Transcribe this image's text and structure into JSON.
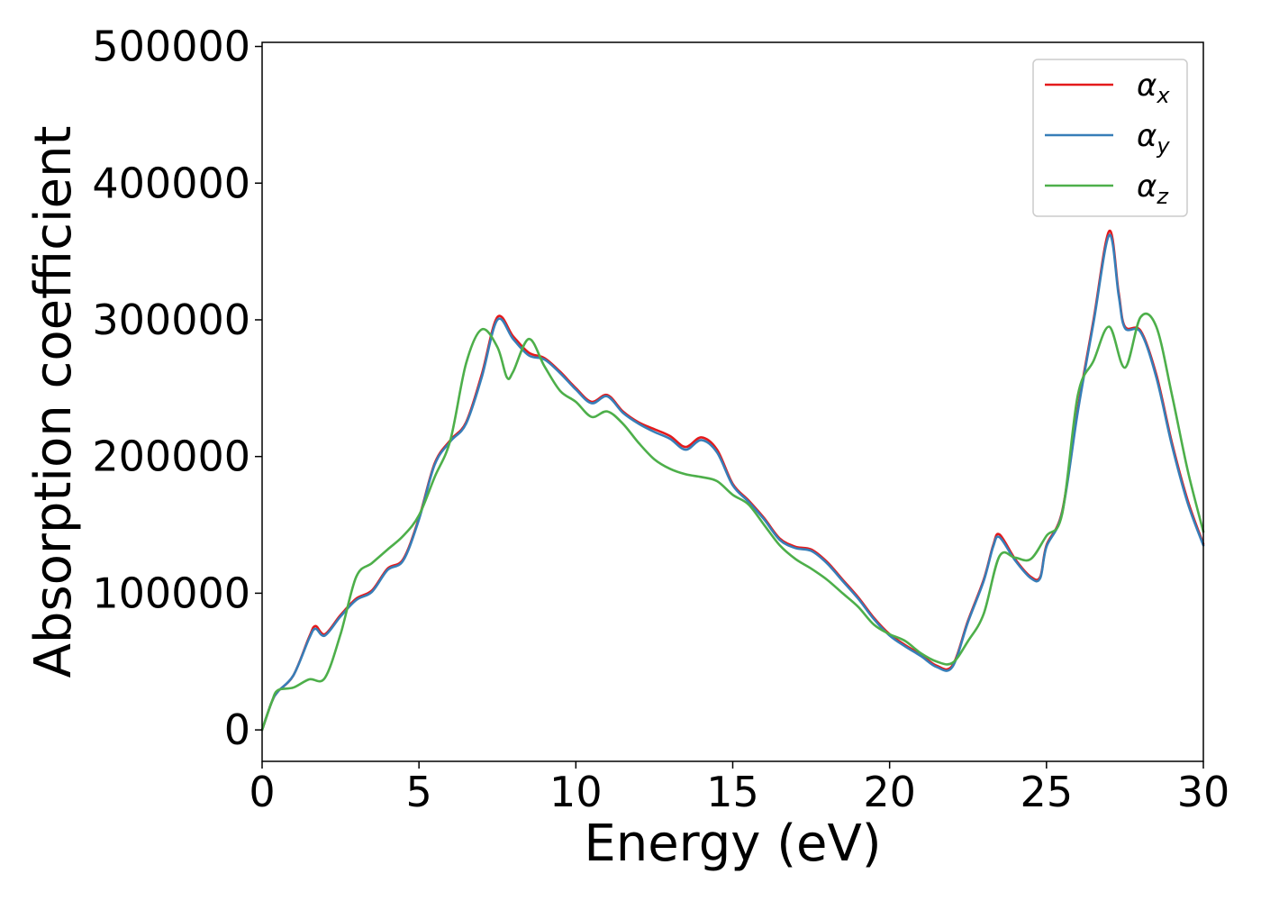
{
  "chart_data": {
    "type": "line",
    "title": "",
    "xlabel": "Energy (eV)",
    "ylabel": "Absorption coefficient",
    "xlim": [
      0,
      30
    ],
    "ylim": [
      -23000,
      503000
    ],
    "x_ticks": [
      0,
      5,
      10,
      15,
      20,
      25,
      30
    ],
    "y_ticks": [
      0,
      100000,
      200000,
      300000,
      400000,
      500000
    ],
    "grid": false,
    "legend_position": "top-right",
    "series": [
      {
        "name": "αx",
        "symbol": "α",
        "subscript": "x",
        "color": "#e41a1c",
        "points": [
          [
            0,
            0
          ],
          [
            0.3,
            20000
          ],
          [
            0.5,
            28000
          ],
          [
            1.0,
            40000
          ],
          [
            1.5,
            68000
          ],
          [
            1.7,
            76000
          ],
          [
            2.0,
            70000
          ],
          [
            2.5,
            84000
          ],
          [
            3.0,
            96000
          ],
          [
            3.5,
            102000
          ],
          [
            4.0,
            118000
          ],
          [
            4.5,
            125000
          ],
          [
            5.0,
            155000
          ],
          [
            5.5,
            195000
          ],
          [
            6.0,
            212000
          ],
          [
            6.5,
            225000
          ],
          [
            7.0,
            260000
          ],
          [
            7.5,
            302000
          ],
          [
            8.0,
            288000
          ],
          [
            8.5,
            276000
          ],
          [
            9.0,
            272000
          ],
          [
            9.5,
            262000
          ],
          [
            10.0,
            250000
          ],
          [
            10.5,
            240000
          ],
          [
            11.0,
            245000
          ],
          [
            11.5,
            233000
          ],
          [
            12.0,
            225000
          ],
          [
            12.5,
            220000
          ],
          [
            13.0,
            215000
          ],
          [
            13.5,
            207000
          ],
          [
            14.0,
            214000
          ],
          [
            14.5,
            205000
          ],
          [
            15.0,
            180000
          ],
          [
            15.5,
            168000
          ],
          [
            16.0,
            155000
          ],
          [
            16.5,
            140000
          ],
          [
            17.0,
            134000
          ],
          [
            17.5,
            132000
          ],
          [
            18.0,
            123000
          ],
          [
            18.5,
            110000
          ],
          [
            19.0,
            97000
          ],
          [
            19.5,
            82000
          ],
          [
            20.0,
            70000
          ],
          [
            20.5,
            62000
          ],
          [
            21.0,
            55000
          ],
          [
            21.5,
            47000
          ],
          [
            22.0,
            47000
          ],
          [
            22.5,
            80000
          ],
          [
            23.0,
            110000
          ],
          [
            23.3,
            135000
          ],
          [
            23.5,
            143000
          ],
          [
            24.0,
            125000
          ],
          [
            24.5,
            112000
          ],
          [
            24.8,
            112000
          ],
          [
            25.0,
            135000
          ],
          [
            25.5,
            160000
          ],
          [
            26.0,
            235000
          ],
          [
            26.5,
            300000
          ],
          [
            27.0,
            365000
          ],
          [
            27.3,
            320000
          ],
          [
            27.5,
            295000
          ],
          [
            28.0,
            292000
          ],
          [
            28.5,
            260000
          ],
          [
            29.0,
            210000
          ],
          [
            29.5,
            168000
          ],
          [
            30.0,
            136000
          ]
        ]
      },
      {
        "name": "αy",
        "symbol": "α",
        "subscript": "y",
        "color": "#377eb8",
        "points": [
          [
            0,
            0
          ],
          [
            0.3,
            20000
          ],
          [
            0.5,
            28000
          ],
          [
            1.0,
            40000
          ],
          [
            1.5,
            67000
          ],
          [
            1.7,
            74000
          ],
          [
            2.0,
            69000
          ],
          [
            2.5,
            83000
          ],
          [
            3.0,
            95000
          ],
          [
            3.5,
            101000
          ],
          [
            4.0,
            117000
          ],
          [
            4.5,
            124000
          ],
          [
            5.0,
            154000
          ],
          [
            5.5,
            194000
          ],
          [
            6.0,
            211000
          ],
          [
            6.5,
            224000
          ],
          [
            7.0,
            258000
          ],
          [
            7.5,
            300000
          ],
          [
            8.0,
            286000
          ],
          [
            8.5,
            274000
          ],
          [
            9.0,
            271000
          ],
          [
            9.5,
            261000
          ],
          [
            10.0,
            249000
          ],
          [
            10.5,
            239000
          ],
          [
            11.0,
            244000
          ],
          [
            11.5,
            232000
          ],
          [
            12.0,
            224000
          ],
          [
            12.5,
            218000
          ],
          [
            13.0,
            213000
          ],
          [
            13.5,
            205000
          ],
          [
            14.0,
            212000
          ],
          [
            14.5,
            203000
          ],
          [
            15.0,
            179000
          ],
          [
            15.5,
            167000
          ],
          [
            16.0,
            154000
          ],
          [
            16.5,
            139000
          ],
          [
            17.0,
            133000
          ],
          [
            17.5,
            131000
          ],
          [
            18.0,
            122000
          ],
          [
            18.5,
            109000
          ],
          [
            19.0,
            96000
          ],
          [
            19.5,
            81000
          ],
          [
            20.0,
            69000
          ],
          [
            20.5,
            61000
          ],
          [
            21.0,
            54000
          ],
          [
            21.5,
            46000
          ],
          [
            22.0,
            46000
          ],
          [
            22.5,
            79000
          ],
          [
            23.0,
            109000
          ],
          [
            23.3,
            134000
          ],
          [
            23.5,
            141000
          ],
          [
            24.0,
            124000
          ],
          [
            24.5,
            111000
          ],
          [
            24.8,
            111000
          ],
          [
            25.0,
            134000
          ],
          [
            25.5,
            159000
          ],
          [
            26.0,
            233000
          ],
          [
            26.5,
            298000
          ],
          [
            27.0,
            362000
          ],
          [
            27.3,
            318000
          ],
          [
            27.5,
            294000
          ],
          [
            28.0,
            291000
          ],
          [
            28.5,
            258000
          ],
          [
            29.0,
            208000
          ],
          [
            29.5,
            166000
          ],
          [
            30.0,
            135000
          ]
        ]
      },
      {
        "name": "αz",
        "symbol": "α",
        "subscript": "z",
        "color": "#4daf4a",
        "points": [
          [
            0,
            0
          ],
          [
            0.3,
            20000
          ],
          [
            0.5,
            29000
          ],
          [
            1.0,
            31000
          ],
          [
            1.5,
            37000
          ],
          [
            2.0,
            38000
          ],
          [
            2.5,
            70000
          ],
          [
            3.0,
            112000
          ],
          [
            3.5,
            122000
          ],
          [
            4.0,
            132000
          ],
          [
            4.5,
            142000
          ],
          [
            5.0,
            157000
          ],
          [
            5.5,
            185000
          ],
          [
            6.0,
            212000
          ],
          [
            6.5,
            268000
          ],
          [
            7.0,
            293000
          ],
          [
            7.5,
            280000
          ],
          [
            7.8,
            258000
          ],
          [
            8.0,
            262000
          ],
          [
            8.5,
            286000
          ],
          [
            9.0,
            266000
          ],
          [
            9.5,
            248000
          ],
          [
            10.0,
            240000
          ],
          [
            10.5,
            229000
          ],
          [
            11.0,
            233000
          ],
          [
            11.5,
            224000
          ],
          [
            12.0,
            210000
          ],
          [
            12.5,
            198000
          ],
          [
            13.0,
            191000
          ],
          [
            13.5,
            187000
          ],
          [
            14.0,
            185000
          ],
          [
            14.5,
            182000
          ],
          [
            15.0,
            172000
          ],
          [
            15.5,
            165000
          ],
          [
            16.0,
            150000
          ],
          [
            16.5,
            135000
          ],
          [
            17.0,
            125000
          ],
          [
            17.5,
            118000
          ],
          [
            18.0,
            110000
          ],
          [
            18.5,
            100000
          ],
          [
            19.0,
            90000
          ],
          [
            19.5,
            77000
          ],
          [
            20.0,
            70000
          ],
          [
            20.5,
            65000
          ],
          [
            21.0,
            56000
          ],
          [
            21.5,
            50000
          ],
          [
            22.0,
            49000
          ],
          [
            22.5,
            65000
          ],
          [
            23.0,
            85000
          ],
          [
            23.5,
            127000
          ],
          [
            24.0,
            126000
          ],
          [
            24.5,
            125000
          ],
          [
            25.0,
            142000
          ],
          [
            25.5,
            158000
          ],
          [
            26.0,
            245000
          ],
          [
            26.5,
            270000
          ],
          [
            27.0,
            295000
          ],
          [
            27.5,
            265000
          ],
          [
            28.0,
            302000
          ],
          [
            28.5,
            295000
          ],
          [
            29.0,
            245000
          ],
          [
            29.5,
            190000
          ],
          [
            30.0,
            145000
          ]
        ]
      }
    ]
  }
}
